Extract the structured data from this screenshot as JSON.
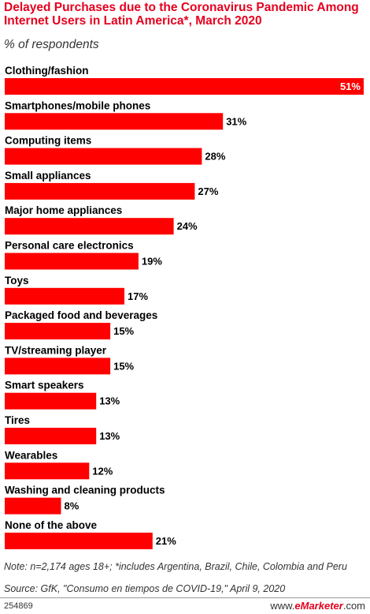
{
  "header": {
    "title": "Delayed Purchases due to the Coronavirus Pandemic Among Internet Users in Latin America*, March 2020",
    "subtitle": "% of respondents"
  },
  "footer": {
    "note": "Note: n=2,174 ages 18+; *includes Argentina, Brazil, Chile, Colombia and Peru",
    "source": "Source: GfK, \"Consumo en tiempos de COVID-19,\" April 9, 2020",
    "chart_id": "254869",
    "brand_prefix": "www.",
    "brand_accent": "eMarketer",
    "brand_suffix": ".com"
  },
  "colors": {
    "bar": "#ff0000",
    "title": "#e6001f",
    "inside_label": "#ffffff",
    "outside_label": "#000000"
  },
  "chart_data": {
    "type": "bar",
    "orientation": "horizontal",
    "value_suffix": "%",
    "xlim": [
      0,
      51
    ],
    "grid": false,
    "categories": [
      "Clothing/fashion",
      "Smartphones/mobile phones",
      "Computing items",
      "Small appliances",
      "Major home appliances",
      "Personal care electronics",
      "Toys",
      "Packaged food and beverages",
      "TV/streaming player",
      "Smart speakers",
      "Tires",
      "Wearables",
      "Washing and cleaning products",
      "None of the above"
    ],
    "values": [
      51,
      31,
      28,
      27,
      24,
      19,
      17,
      15,
      15,
      13,
      13,
      12,
      8,
      21
    ],
    "value_labels": [
      "51%",
      "31%",
      "28%",
      "27%",
      "24%",
      "19%",
      "17%",
      "15%",
      "15%",
      "13%",
      "13%",
      "12%",
      "8%",
      "21%"
    ]
  }
}
